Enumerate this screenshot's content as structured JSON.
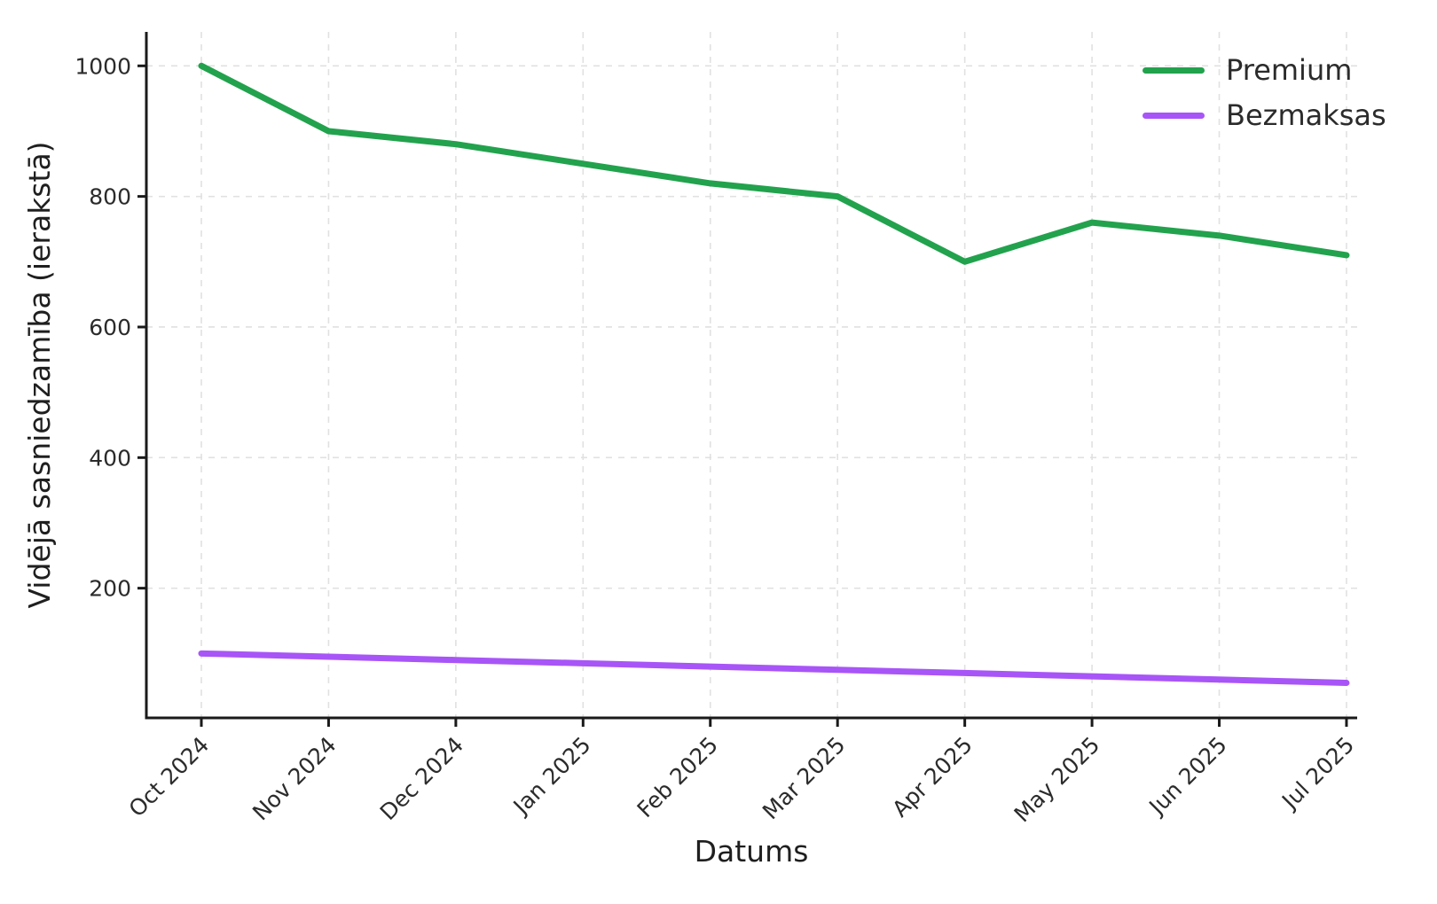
{
  "chart_data": {
    "type": "line",
    "title": "",
    "xlabel": "Datums",
    "ylabel": "Vidējā sasniedzamība (ierakstā)",
    "categories": [
      "Oct 2024",
      "Nov 2024",
      "Dec 2024",
      "Jan 2025",
      "Feb 2025",
      "Mar 2025",
      "Apr 2025",
      "May 2025",
      "Jun 2025",
      "Jul 2025"
    ],
    "series": [
      {
        "name": "Premium",
        "color": "#22a24d",
        "values": [
          1000,
          900,
          880,
          850,
          820,
          800,
          700,
          760,
          740,
          710
        ]
      },
      {
        "name": "Bezmaksas",
        "color": "#a855f7",
        "values": [
          100,
          95,
          90,
          85,
          80,
          75,
          70,
          65,
          60,
          55
        ]
      }
    ],
    "yticks": [
      200,
      400,
      600,
      800,
      1000
    ],
    "ylim": [
      0,
      1052
    ],
    "grid": true,
    "grid_style": "dashed",
    "grid_color": "#e1e1e1",
    "axis_color": "#1a1a1a",
    "tick_label_color": "#2b2b2b",
    "line_width": 7,
    "legend_position": "upper-right",
    "background": "#ffffff"
  }
}
